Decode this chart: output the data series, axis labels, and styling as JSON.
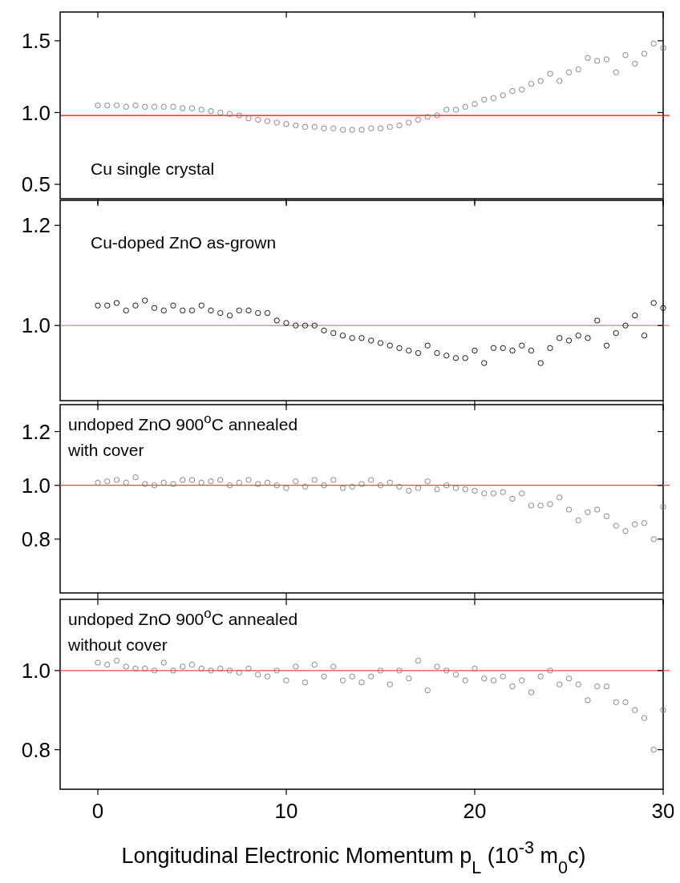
{
  "chart_data": [
    {
      "type": "scatter",
      "annotations": [
        "Cu single crystal"
      ],
      "marker": "circle",
      "xlim": [
        -2,
        30
      ],
      "xticks": [
        0,
        10,
        20,
        30
      ],
      "ylim": [
        0.4,
        1.7
      ],
      "yticks": [
        {
          "value": 0.5,
          "label": "0.5"
        },
        {
          "value": 1,
          "label": "1.0"
        },
        {
          "value": 1.5,
          "label": "1.5"
        }
      ],
      "tick_labels": "y",
      "ref_lines": [
        {
          "axis": "y",
          "value": 0.98,
          "color": "#ff0000"
        }
      ],
      "x": [
        0,
        0.5,
        1,
        1.5,
        2,
        2.5,
        3,
        3.5,
        4,
        4.5,
        5,
        5.5,
        6,
        6.5,
        7,
        7.5,
        8,
        8.5,
        9,
        9.5,
        10,
        10.5,
        11,
        11.5,
        12,
        12.5,
        13,
        13.5,
        14,
        14.5,
        15,
        15.5,
        16,
        16.5,
        17,
        17.5,
        18,
        18.5,
        19,
        19.5,
        20,
        20.5,
        21,
        21.5,
        22,
        22.5,
        23,
        23.5,
        24,
        24.5,
        25,
        25.5,
        26,
        26.5,
        27,
        27.5,
        28,
        28.5,
        29,
        29.5,
        30
      ],
      "series": [
        {
          "color": "#777777",
          "values": [
            1.05,
            1.05,
            1.05,
            1.04,
            1.05,
            1.04,
            1.04,
            1.04,
            1.04,
            1.03,
            1.03,
            1.02,
            1.01,
            1.0,
            0.99,
            0.98,
            0.96,
            0.95,
            0.94,
            0.93,
            0.92,
            0.91,
            0.9,
            0.9,
            0.89,
            0.89,
            0.88,
            0.88,
            0.88,
            0.89,
            0.89,
            0.9,
            0.91,
            0.93,
            0.95,
            0.97,
            0.98,
            1.02,
            1.02,
            1.04,
            1.06,
            1.09,
            1.1,
            1.12,
            1.15,
            1.16,
            1.2,
            1.22,
            1.27,
            1.22,
            1.28,
            1.3,
            1.38,
            1.36,
            1.37,
            1.28,
            1.4,
            1.34,
            1.41,
            1.48,
            1.45
          ]
        }
      ]
    },
    {
      "type": "scatter",
      "annotations": [
        "Cu-doped ZnO as-grown"
      ],
      "marker": "circle",
      "xlim": [
        -2,
        30
      ],
      "xticks": [
        0,
        10,
        20,
        30
      ],
      "ylim": [
        0.85,
        1.25
      ],
      "yticks": [
        {
          "value": 1,
          "label": "1.0"
        },
        {
          "value": 1.2,
          "label": "1.2"
        }
      ],
      "tick_labels": "y",
      "ref_lines": [
        {
          "axis": "y",
          "value": 1.0,
          "color": "#ff6666"
        }
      ],
      "x": [
        0,
        0.5,
        1,
        1.5,
        2,
        2.5,
        3,
        3.5,
        4,
        4.5,
        5,
        5.5,
        6,
        6.5,
        7,
        7.5,
        8,
        8.5,
        9,
        9.5,
        10,
        10.5,
        11,
        11.5,
        12,
        12.5,
        13,
        13.5,
        14,
        14.5,
        15,
        15.5,
        16,
        16.5,
        17,
        17.5,
        18,
        18.5,
        19,
        19.5,
        20,
        20.5,
        21,
        21.5,
        22,
        22.5,
        23,
        23.5,
        24,
        24.5,
        25,
        25.5,
        26,
        26.5,
        27,
        27.5,
        28,
        28.5,
        29,
        29.5,
        30
      ],
      "series": [
        {
          "color": "#000000",
          "values": [
            1.04,
            1.04,
            1.045,
            1.03,
            1.04,
            1.05,
            1.035,
            1.03,
            1.04,
            1.03,
            1.03,
            1.04,
            1.03,
            1.025,
            1.02,
            1.03,
            1.03,
            1.025,
            1.025,
            1.01,
            1.005,
            1.0,
            1.0,
            1.0,
            0.99,
            0.985,
            0.98,
            0.975,
            0.975,
            0.97,
            0.965,
            0.96,
            0.955,
            0.95,
            0.945,
            0.96,
            0.945,
            0.94,
            0.935,
            0.935,
            0.95,
            0.925,
            0.955,
            0.955,
            0.95,
            0.96,
            0.95,
            0.925,
            0.955,
            0.975,
            0.97,
            0.98,
            0.975,
            1.01,
            0.96,
            0.985,
            1.0,
            1.02,
            0.98,
            1.045,
            1.035
          ]
        }
      ]
    },
    {
      "type": "scatter",
      "annotations": [
        "undoped ZnO 900$^{o}$C annealed",
        "with cover"
      ],
      "marker": "circle",
      "xlim": [
        -2,
        30
      ],
      "xticks": [
        0,
        10,
        20,
        30
      ],
      "ylim": [
        0.6,
        1.3
      ],
      "yticks": [
        {
          "value": 0.8,
          "label": "0.8"
        },
        {
          "value": 1,
          "label": "1.0"
        },
        {
          "value": 1.2,
          "label": "1.2"
        }
      ],
      "tick_labels": "y",
      "ref_lines": [
        {
          "axis": "y",
          "value": 1.0,
          "color": "#ff4444"
        }
      ],
      "x": [
        0,
        0.5,
        1,
        1.5,
        2,
        2.5,
        3,
        3.5,
        4,
        4.5,
        5,
        5.5,
        6,
        6.5,
        7,
        7.5,
        8,
        8.5,
        9,
        9.5,
        10,
        10.5,
        11,
        11.5,
        12,
        12.5,
        13,
        13.5,
        14,
        14.5,
        15,
        15.5,
        16,
        16.5,
        17,
        17.5,
        18,
        18.5,
        19,
        19.5,
        20,
        20.5,
        21,
        21.5,
        22,
        22.5,
        23,
        23.5,
        24,
        24.5,
        25,
        25.5,
        26,
        26.5,
        27,
        27.5,
        28,
        28.5,
        29,
        29.5,
        30
      ],
      "series": [
        {
          "color": "#777777",
          "values": [
            1.01,
            1.015,
            1.02,
            1.01,
            1.03,
            1.005,
            1.0,
            1.01,
            1.005,
            1.02,
            1.02,
            1.01,
            1.015,
            1.02,
            1.0,
            1.01,
            1.02,
            1.005,
            1.01,
            1.0,
            0.99,
            1.015,
            0.995,
            1.02,
            1.0,
            1.02,
            0.99,
            0.995,
            1.005,
            1.02,
            1.0,
            1.01,
            0.995,
            0.98,
            0.99,
            1.015,
            0.985,
            1.0,
            0.99,
            0.985,
            0.98,
            0.97,
            0.97,
            0.975,
            0.95,
            0.97,
            0.925,
            0.925,
            0.93,
            0.955,
            0.91,
            0.87,
            0.9,
            0.91,
            0.885,
            0.85,
            0.83,
            0.855,
            0.86,
            0.8,
            0.92
          ]
        }
      ]
    },
    {
      "type": "scatter",
      "annotations": [
        "undoped ZnO 900$^{o}$C annealed",
        "without cover"
      ],
      "xlabel": "Longitudinal Electronic Momentum p$_{L}$ (10$^{-3}$ m$_{0}$c)",
      "marker": "circle",
      "xlim": [
        -2,
        30
      ],
      "xticks": [
        0,
        10,
        20,
        30
      ],
      "ylim": [
        0.7,
        1.18
      ],
      "yticks": [
        {
          "value": 0.8,
          "label": "0.8"
        },
        {
          "value": 1,
          "label": "1.0"
        }
      ],
      "ref_lines": [
        {
          "axis": "y",
          "value": 1.0,
          "color": "#ff4444"
        }
      ],
      "x": [
        0,
        0.5,
        1,
        1.5,
        2,
        2.5,
        3,
        3.5,
        4,
        4.5,
        5,
        5.5,
        6,
        6.5,
        7,
        7.5,
        8,
        8.5,
        9,
        9.5,
        10,
        10.5,
        11,
        11.5,
        12,
        12.5,
        13,
        13.5,
        14,
        14.5,
        15,
        15.5,
        16,
        16.5,
        17,
        17.5,
        18,
        18.5,
        19,
        19.5,
        20,
        20.5,
        21,
        21.5,
        22,
        22.5,
        23,
        23.5,
        24,
        24.5,
        25,
        25.5,
        26,
        26.5,
        27,
        27.5,
        28,
        28.5,
        29,
        29.5,
        30
      ],
      "series": [
        {
          "color": "#777777",
          "values": [
            1.02,
            1.015,
            1.025,
            1.01,
            1.005,
            1.005,
            1.0,
            1.02,
            1.0,
            1.01,
            1.015,
            1.005,
            1.0,
            1.005,
            1.0,
            0.995,
            1.005,
            0.99,
            0.985,
            1.0,
            0.975,
            1.01,
            0.97,
            1.015,
            0.985,
            1.01,
            0.975,
            0.985,
            0.97,
            0.985,
            1.0,
            0.965,
            1.0,
            0.98,
            1.025,
            0.95,
            1.01,
            1.0,
            0.99,
            0.975,
            1.005,
            0.98,
            0.975,
            0.985,
            0.96,
            0.975,
            0.945,
            0.985,
            1.0,
            0.965,
            0.98,
            0.965,
            0.925,
            0.96,
            0.96,
            0.92,
            0.92,
            0.9,
            0.88,
            0.8,
            0.9
          ]
        }
      ]
    }
  ]
}
